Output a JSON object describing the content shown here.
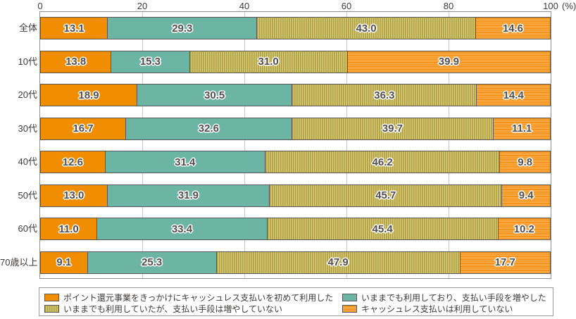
{
  "chart_data": {
    "type": "bar",
    "orientation": "horizontal-stacked",
    "unit_label": "(%)",
    "x_ticks": [
      "0",
      "20",
      "40",
      "60",
      "80",
      "100"
    ],
    "xlim": [
      0,
      100
    ],
    "grid": true,
    "gridline_values": [
      20,
      40,
      60,
      80
    ],
    "legend_position": "bottom",
    "categories": [
      "全体",
      "10代",
      "20代",
      "30代",
      "40代",
      "50代",
      "60代",
      "70歳以上"
    ],
    "series": [
      {
        "name": "ポイント還元事業をきっかけにキャッシュレス支払いを初めて利用した",
        "pattern": "solid",
        "color": "#f08d00",
        "values": [
          13.1,
          13.8,
          18.9,
          16.7,
          12.6,
          13.0,
          11.0,
          9.1
        ]
      },
      {
        "name": "いままでも利用しており、支払い手段を増やした",
        "pattern": "solid",
        "color": "#6cb5a4",
        "values": [
          29.3,
          15.3,
          30.5,
          32.6,
          31.4,
          31.9,
          33.4,
          25.3
        ]
      },
      {
        "name": "いままでも利用していたが、支払い手段は増やしていない",
        "pattern": "vertical-stripes",
        "color": "#cfc267",
        "values": [
          43.0,
          31.0,
          36.3,
          39.7,
          46.2,
          45.7,
          45.4,
          47.9
        ]
      },
      {
        "name": "キャッシュレス支払いは利用していない",
        "pattern": "horizontal-stripes",
        "color": "#f6951d",
        "values": [
          14.6,
          39.9,
          14.4,
          11.1,
          9.8,
          9.4,
          10.2,
          17.7
        ]
      }
    ]
  }
}
